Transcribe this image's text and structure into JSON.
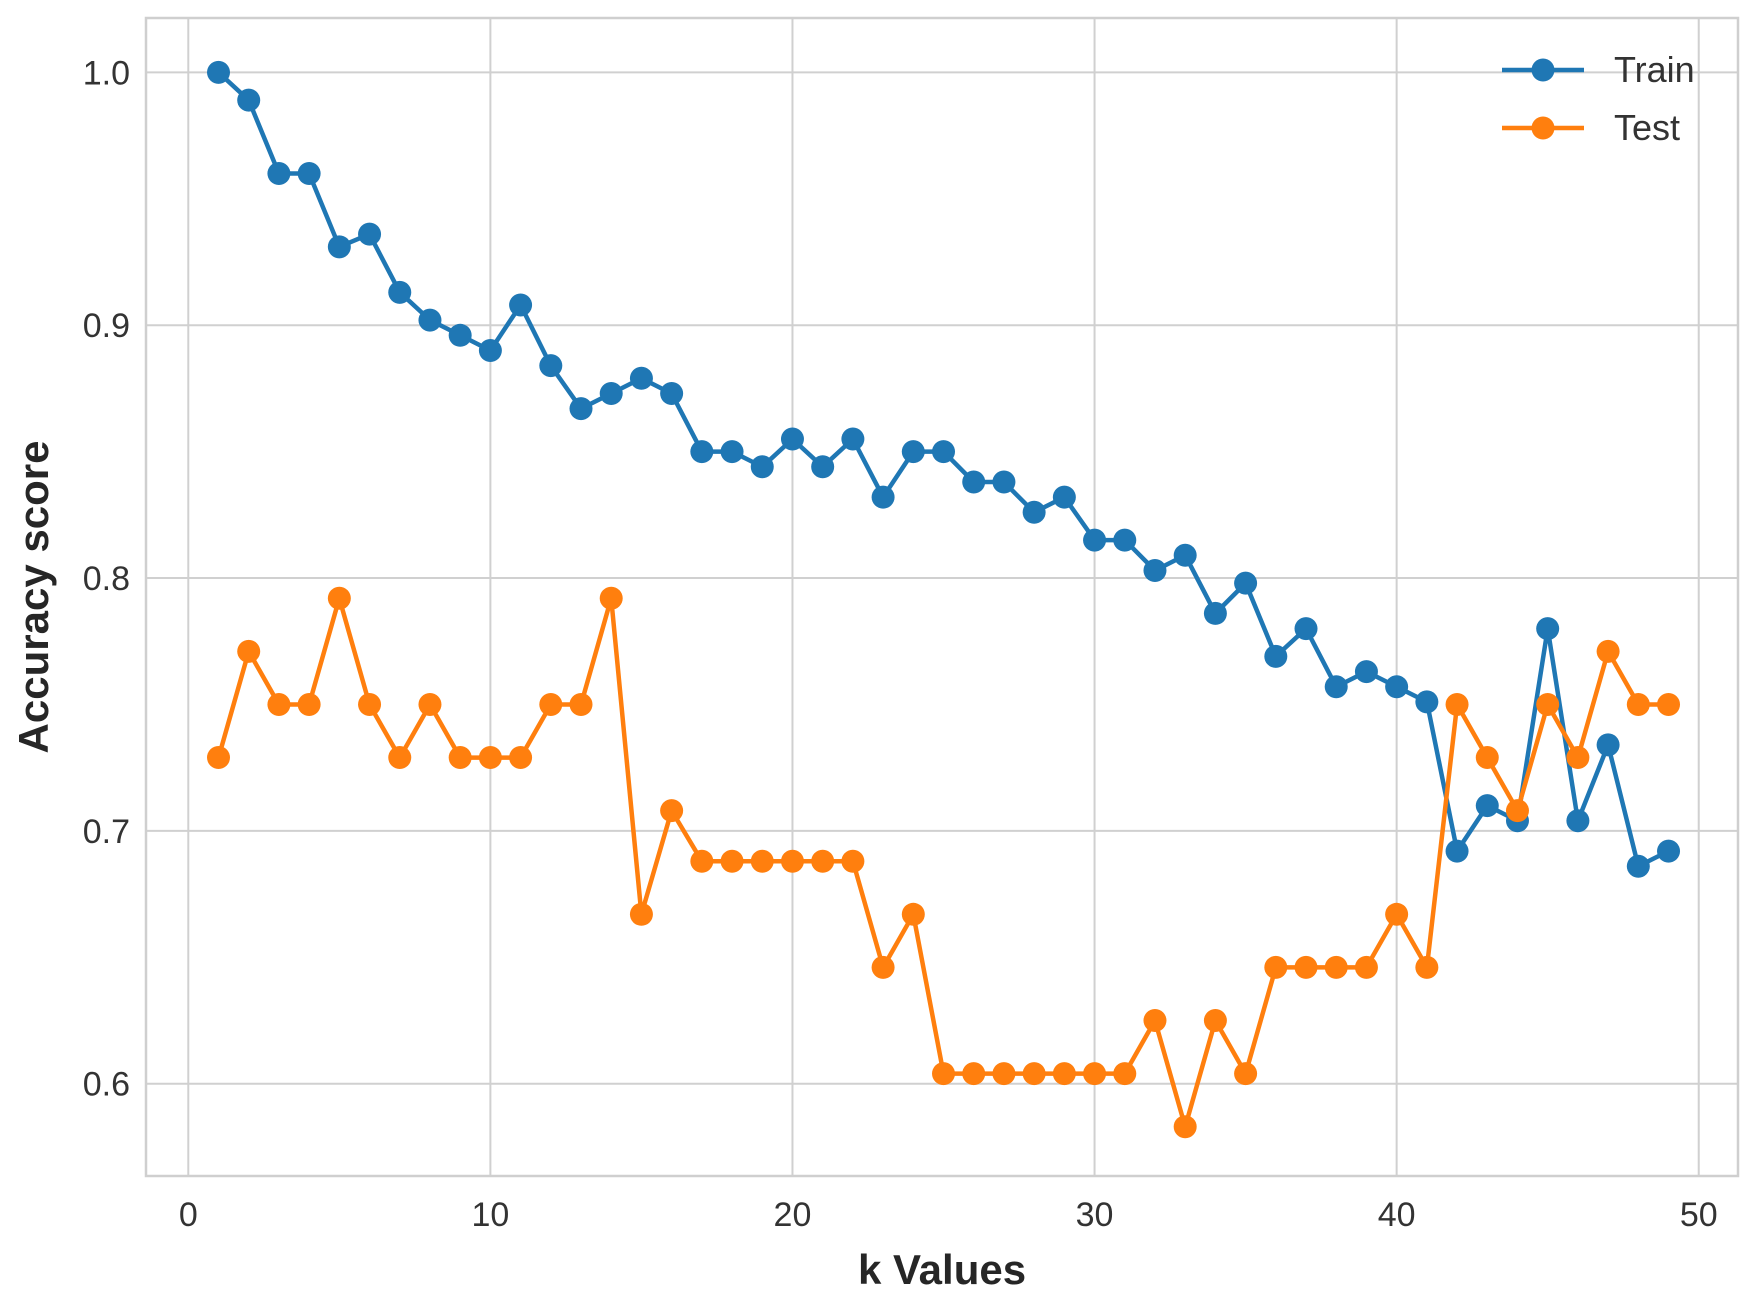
{
  "chart_data": {
    "type": "line",
    "title": "",
    "xlabel": "k Values",
    "ylabel": "Accuracy score",
    "xlim": [
      -1.4,
      51.3
    ],
    "ylim": [
      0.5635,
      1.0215
    ],
    "xticks": [
      0,
      10,
      20,
      30,
      40,
      50
    ],
    "yticks": [
      0.6,
      0.7,
      0.8,
      0.9,
      1.0
    ],
    "ytick_labels": [
      "0.6",
      "0.7",
      "0.8",
      "0.9",
      "1.0"
    ],
    "grid": true,
    "legend_position": "top-right",
    "x": [
      1,
      2,
      3,
      4,
      5,
      6,
      7,
      8,
      9,
      10,
      11,
      12,
      13,
      14,
      15,
      16,
      17,
      18,
      19,
      20,
      21,
      22,
      23,
      24,
      25,
      26,
      27,
      28,
      29,
      30,
      31,
      32,
      33,
      34,
      35,
      36,
      37,
      38,
      39,
      40,
      41,
      42,
      43,
      44,
      45,
      46,
      47,
      48,
      49
    ],
    "series": [
      {
        "name": "Train",
        "color": "#1f77b4",
        "values": [
          1.0,
          0.989,
          0.96,
          0.96,
          0.931,
          0.936,
          0.913,
          0.902,
          0.896,
          0.89,
          0.908,
          0.884,
          0.867,
          0.873,
          0.879,
          0.873,
          0.85,
          0.85,
          0.844,
          0.855,
          0.844,
          0.855,
          0.832,
          0.85,
          0.85,
          0.838,
          0.838,
          0.826,
          0.832,
          0.815,
          0.815,
          0.803,
          0.809,
          0.786,
          0.798,
          0.769,
          0.78,
          0.757,
          0.763,
          0.757,
          0.751,
          0.692,
          0.71,
          0.704,
          0.78,
          0.704,
          0.734,
          0.686,
          0.692
        ]
      },
      {
        "name": "Test",
        "color": "#ff7f0e",
        "values": [
          0.729,
          0.771,
          0.75,
          0.75,
          0.792,
          0.75,
          0.729,
          0.75,
          0.729,
          0.729,
          0.729,
          0.75,
          0.75,
          0.792,
          0.667,
          0.708,
          0.688,
          0.688,
          0.688,
          0.688,
          0.688,
          0.688,
          0.646,
          0.667,
          0.604,
          0.604,
          0.604,
          0.604,
          0.604,
          0.604,
          0.604,
          0.625,
          0.583,
          0.625,
          0.604,
          0.646,
          0.646,
          0.646,
          0.646,
          0.667,
          0.646,
          0.75,
          0.729,
          0.708,
          0.75,
          0.729,
          0.771,
          0.75,
          0.75
        ]
      }
    ]
  }
}
